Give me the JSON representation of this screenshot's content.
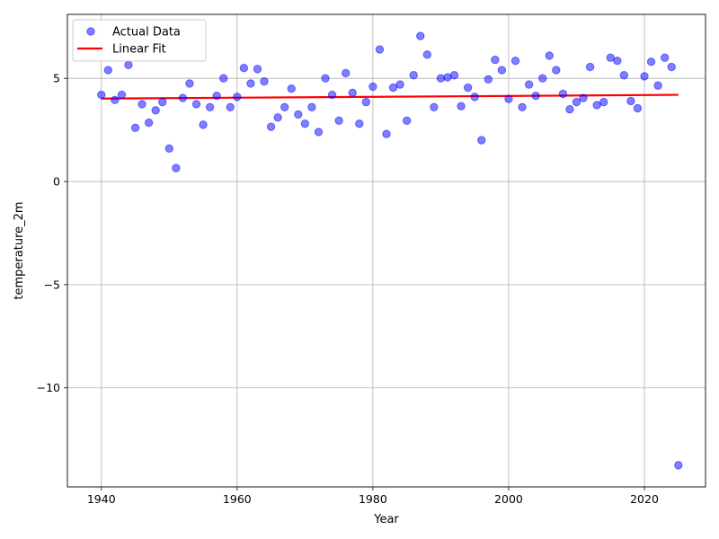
{
  "chart_data": {
    "type": "scatter",
    "xlabel": "Year",
    "ylabel": "temperature_2m",
    "xlim": [
      1935,
      2029
    ],
    "ylim": [
      -14.8,
      8.1
    ],
    "xticks": [
      1940,
      1960,
      1980,
      2000,
      2020
    ],
    "yticks": [
      -10,
      -5,
      0,
      5
    ],
    "grid": true,
    "legend_placement": "top-left",
    "series": [
      {
        "name": "Actual Data",
        "kind": "scatter",
        "color": "#0000ff",
        "points": [
          [
            1940,
            4.2
          ],
          [
            1941,
            5.4
          ],
          [
            1942,
            3.95
          ],
          [
            1943,
            4.2
          ],
          [
            1944,
            5.65
          ],
          [
            1945,
            2.6
          ],
          [
            1946,
            3.75
          ],
          [
            1947,
            2.85
          ],
          [
            1948,
            3.45
          ],
          [
            1949,
            3.85
          ],
          [
            1950,
            1.6
          ],
          [
            1951,
            0.65
          ],
          [
            1952,
            4.05
          ],
          [
            1953,
            4.75
          ],
          [
            1954,
            3.75
          ],
          [
            1955,
            2.75
          ],
          [
            1956,
            3.6
          ],
          [
            1957,
            4.15
          ],
          [
            1958,
            5.0
          ],
          [
            1959,
            3.6
          ],
          [
            1960,
            4.1
          ],
          [
            1961,
            5.5
          ],
          [
            1962,
            4.75
          ],
          [
            1963,
            5.45
          ],
          [
            1964,
            4.85
          ],
          [
            1965,
            2.65
          ],
          [
            1966,
            3.1
          ],
          [
            1967,
            3.6
          ],
          [
            1968,
            4.5
          ],
          [
            1969,
            3.25
          ],
          [
            1970,
            2.8
          ],
          [
            1971,
            3.6
          ],
          [
            1972,
            2.4
          ],
          [
            1973,
            5.0
          ],
          [
            1974,
            4.2
          ],
          [
            1975,
            2.95
          ],
          [
            1976,
            5.25
          ],
          [
            1977,
            4.3
          ],
          [
            1978,
            2.8
          ],
          [
            1979,
            3.85
          ],
          [
            1980,
            4.6
          ],
          [
            1981,
            6.4
          ],
          [
            1982,
            2.3
          ],
          [
            1983,
            4.55
          ],
          [
            1984,
            4.7
          ],
          [
            1985,
            2.95
          ],
          [
            1986,
            5.15
          ],
          [
            1987,
            7.05
          ],
          [
            1988,
            6.15
          ],
          [
            1989,
            3.6
          ],
          [
            1990,
            5.0
          ],
          [
            1991,
            5.05
          ],
          [
            1992,
            5.15
          ],
          [
            1993,
            3.65
          ],
          [
            1994,
            4.55
          ],
          [
            1995,
            4.1
          ],
          [
            1996,
            2.0
          ],
          [
            1997,
            4.95
          ],
          [
            1998,
            5.9
          ],
          [
            1999,
            5.4
          ],
          [
            2000,
            4.0
          ],
          [
            2001,
            5.85
          ],
          [
            2002,
            3.6
          ],
          [
            2003,
            4.7
          ],
          [
            2004,
            4.15
          ],
          [
            2005,
            5.0
          ],
          [
            2006,
            6.1
          ],
          [
            2007,
            5.4
          ],
          [
            2008,
            4.25
          ],
          [
            2009,
            3.5
          ],
          [
            2010,
            3.85
          ],
          [
            2011,
            4.05
          ],
          [
            2012,
            5.55
          ],
          [
            2013,
            3.7
          ],
          [
            2014,
            3.85
          ],
          [
            2015,
            6.0
          ],
          [
            2016,
            5.85
          ],
          [
            2017,
            5.15
          ],
          [
            2018,
            3.9
          ],
          [
            2019,
            3.55
          ],
          [
            2020,
            5.1
          ],
          [
            2021,
            5.8
          ],
          [
            2022,
            4.65
          ],
          [
            2023,
            6.0
          ],
          [
            2024,
            5.55
          ],
          [
            2025,
            -13.75
          ]
        ]
      },
      {
        "name": "Linear Fit",
        "kind": "line",
        "color": "#ff0000",
        "points": [
          [
            1940,
            4.02
          ],
          [
            2025,
            4.2
          ]
        ]
      }
    ]
  }
}
